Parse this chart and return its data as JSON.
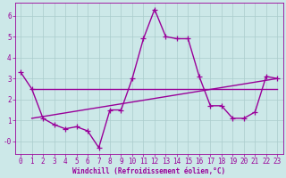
{
  "x": [
    0,
    1,
    2,
    3,
    4,
    5,
    6,
    7,
    8,
    9,
    10,
    11,
    12,
    13,
    14,
    15,
    16,
    17,
    18,
    19,
    20,
    21,
    22,
    23
  ],
  "y_main": [
    3.3,
    2.5,
    1.1,
    0.8,
    0.6,
    0.7,
    0.5,
    -0.3,
    1.5,
    1.5,
    3.0,
    4.9,
    6.3,
    5.0,
    4.9,
    4.9,
    3.1,
    1.7,
    1.7,
    1.1,
    1.1,
    1.4,
    3.1,
    3.0
  ],
  "line_color": "#990099",
  "bg_color": "#cce8e8",
  "grid_color": "#aacccc",
  "xlabel": "Windchill (Refroidissement éolien,°C)",
  "ylim": [
    -0.6,
    6.6
  ],
  "xlim": [
    -0.5,
    23.5
  ],
  "yticks": [
    0,
    1,
    2,
    3,
    4,
    5,
    6
  ],
  "xticks": [
    0,
    1,
    2,
    3,
    4,
    5,
    6,
    7,
    8,
    9,
    10,
    11,
    12,
    13,
    14,
    15,
    16,
    17,
    18,
    19,
    20,
    21,
    22,
    23
  ],
  "marker": "+",
  "markersize": 4,
  "linewidth": 1.0,
  "flat_line_x": [
    1,
    23
  ],
  "flat_line_y": [
    2.5,
    2.5
  ],
  "diag_line_x": [
    1,
    23
  ],
  "diag_line_y": [
    1.1,
    3.0
  ],
  "axis_fontsize": 5.5
}
